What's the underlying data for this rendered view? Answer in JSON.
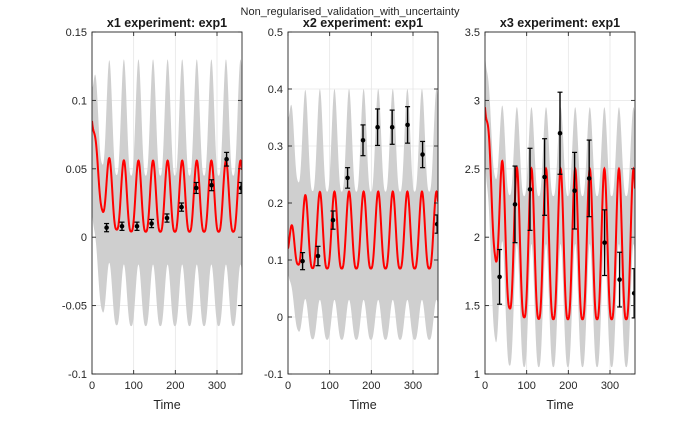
{
  "figure_title": "Non_regularised_validation_with_uncertainty",
  "colors": {
    "band": "#cfcfcf",
    "model": "#ff0000",
    "data": "#000000",
    "grid": "#e6e6e6",
    "axis": "#262626"
  },
  "chart_data": [
    {
      "type": "line",
      "title": "x1 experiment: exp1",
      "xlabel": "Time",
      "ylabel": "",
      "xlim": [
        0,
        360
      ],
      "ylim": [
        -0.1,
        0.15
      ],
      "xticks": [
        "0",
        "100",
        "200",
        "300"
      ],
      "xtick_values": [
        0,
        100,
        200,
        300
      ],
      "yticks": [
        "-0.1",
        "-0.05",
        "0",
        "0.05",
        "0.1",
        "0.15"
      ],
      "ytick_values": [
        -0.1,
        -0.05,
        0,
        0.05,
        0.1,
        0.15
      ],
      "grid": true,
      "model": {
        "color": "#ff0000",
        "period": 35,
        "start": 0.085,
        "min": 0.004,
        "max": 0.056,
        "decay": 15
      },
      "band": {
        "color": "#cfcfcf",
        "upper_peak": 0.13,
        "upper_trough": 0.045,
        "lower_peak": -0.02,
        "lower_trough": -0.065,
        "upper_start": 0.11,
        "lower_start": 0.02
      },
      "data_points": [
        {
          "x": 35,
          "y": 0.007,
          "err": 0.003
        },
        {
          "x": 72,
          "y": 0.008,
          "err": 0.003
        },
        {
          "x": 108,
          "y": 0.008,
          "err": 0.003
        },
        {
          "x": 143,
          "y": 0.01,
          "err": 0.003
        },
        {
          "x": 180,
          "y": 0.014,
          "err": 0.003
        },
        {
          "x": 215,
          "y": 0.022,
          "err": 0.003
        },
        {
          "x": 250,
          "y": 0.036,
          "err": 0.004
        },
        {
          "x": 287,
          "y": 0.038,
          "err": 0.004
        },
        {
          "x": 323,
          "y": 0.057,
          "err": 0.005
        },
        {
          "x": 358,
          "y": 0.036,
          "err": 0.004
        }
      ]
    },
    {
      "type": "line",
      "title": "x2 experiment: exp1",
      "xlabel": "Time",
      "ylabel": "",
      "xlim": [
        0,
        360
      ],
      "ylim": [
        -0.1,
        0.5
      ],
      "xticks": [
        "0",
        "100",
        "200",
        "300"
      ],
      "xtick_values": [
        0,
        100,
        200,
        300
      ],
      "yticks": [
        "-0.1",
        "0",
        "0.1",
        "0.2",
        "0.3",
        "0.4",
        "0.5"
      ],
      "ytick_values": [
        -0.1,
        0,
        0.1,
        0.2,
        0.3,
        0.4,
        0.5
      ],
      "grid": true,
      "model": {
        "color": "#ff0000",
        "period": 35,
        "start": 0.12,
        "min": 0.085,
        "max": 0.22,
        "decay": 15
      },
      "band": {
        "color": "#cfcfcf",
        "upper_peak": 0.4,
        "upper_trough": 0.22,
        "lower_peak": 0.03,
        "lower_trough": -0.04,
        "upper_start": 0.35,
        "lower_start": 0.08
      },
      "data_points": [
        {
          "x": 35,
          "y": 0.098,
          "err": 0.015
        },
        {
          "x": 72,
          "y": 0.107,
          "err": 0.017
        },
        {
          "x": 108,
          "y": 0.17,
          "err": 0.016
        },
        {
          "x": 143,
          "y": 0.244,
          "err": 0.018
        },
        {
          "x": 180,
          "y": 0.31,
          "err": 0.027
        },
        {
          "x": 215,
          "y": 0.333,
          "err": 0.032
        },
        {
          "x": 250,
          "y": 0.333,
          "err": 0.03
        },
        {
          "x": 287,
          "y": 0.337,
          "err": 0.032
        },
        {
          "x": 323,
          "y": 0.285,
          "err": 0.023
        },
        {
          "x": 358,
          "y": 0.163,
          "err": 0.016
        }
      ]
    },
    {
      "type": "line",
      "title": "x3 experiment: exp1",
      "xlabel": "Time",
      "ylabel": "",
      "xlim": [
        0,
        360
      ],
      "ylim": [
        1,
        3.5
      ],
      "xticks": [
        "0",
        "100",
        "200",
        "300"
      ],
      "xtick_values": [
        0,
        100,
        200,
        300
      ],
      "yticks": [
        "1",
        "1.5",
        "2",
        "2.5",
        "3",
        "3.5"
      ],
      "ytick_values": [
        1,
        1.5,
        2,
        2.5,
        3,
        3.5
      ],
      "grid": true,
      "model": {
        "color": "#ff0000",
        "period": 35,
        "start": 2.95,
        "min": 1.4,
        "max": 2.5,
        "decay": 20
      },
      "band": {
        "color": "#cfcfcf",
        "upper_peak": 2.95,
        "upper_trough": 2.3,
        "lower_peak": 1.95,
        "lower_trough": 1.05,
        "upper_start": 3.35,
        "lower_start": 2.6
      },
      "data_points": [
        {
          "x": 35,
          "y": 1.71,
          "err": 0.2
        },
        {
          "x": 72,
          "y": 2.24,
          "err": 0.28
        },
        {
          "x": 108,
          "y": 2.35,
          "err": 0.3
        },
        {
          "x": 143,
          "y": 2.44,
          "err": 0.28
        },
        {
          "x": 180,
          "y": 2.76,
          "err": 0.3
        },
        {
          "x": 215,
          "y": 2.34,
          "err": 0.28
        },
        {
          "x": 250,
          "y": 2.43,
          "err": 0.28
        },
        {
          "x": 287,
          "y": 1.96,
          "err": 0.24
        },
        {
          "x": 323,
          "y": 1.69,
          "err": 0.2
        },
        {
          "x": 358,
          "y": 1.59,
          "err": 0.18
        }
      ]
    }
  ]
}
